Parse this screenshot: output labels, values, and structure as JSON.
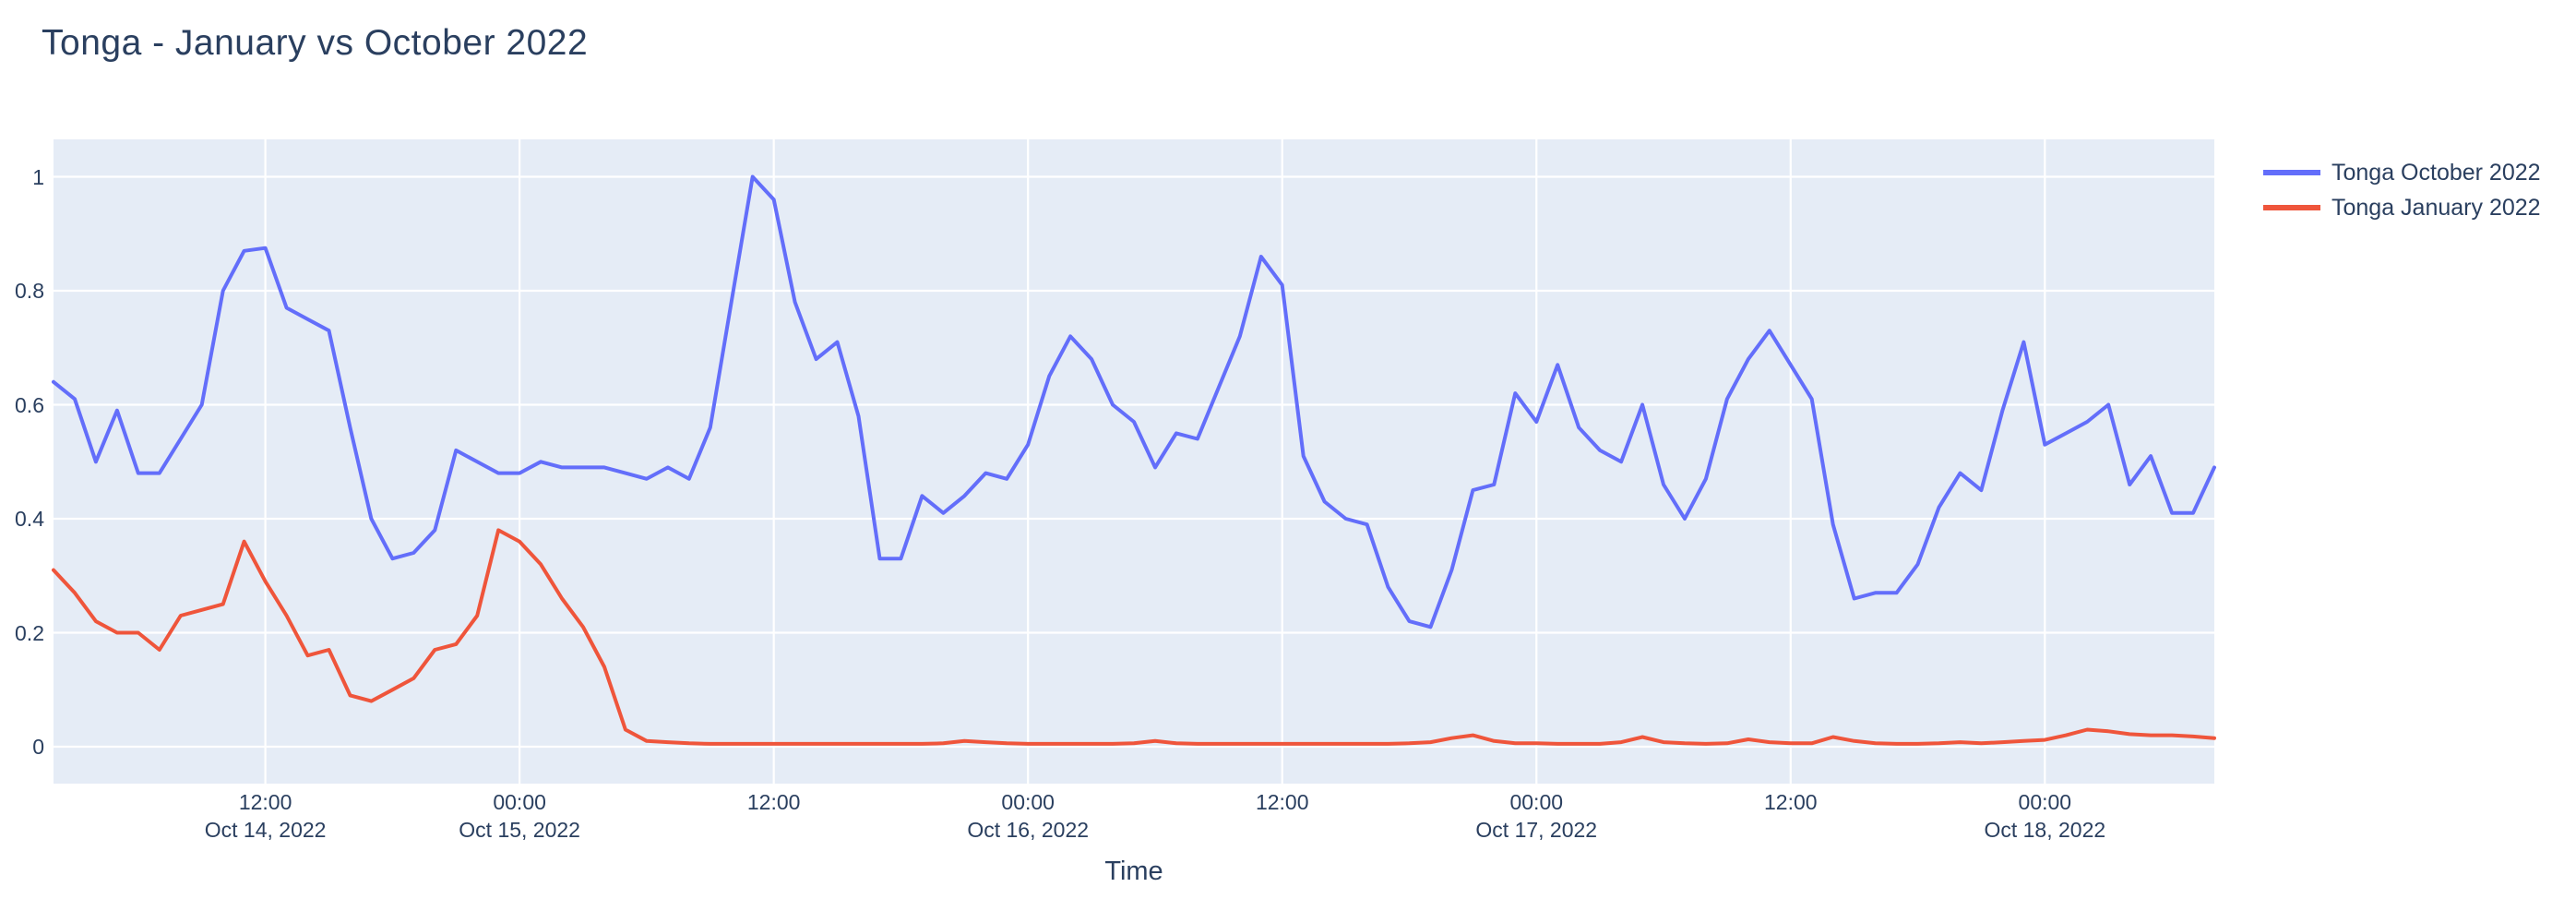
{
  "title": "Tonga - January vs October 2022",
  "axes": {
    "x_title": "Time",
    "y_ticks": [
      0,
      0.2,
      0.4,
      0.6,
      0.8,
      1
    ],
    "x_ticks": [
      {
        "h": 12,
        "time": "12:00",
        "date": "Oct 14, 2022"
      },
      {
        "h": 24,
        "time": "00:00",
        "date": "Oct 15, 2022"
      },
      {
        "h": 36,
        "time": "12:00",
        "date": ""
      },
      {
        "h": 48,
        "time": "00:00",
        "date": "Oct 16, 2022"
      },
      {
        "h": 60,
        "time": "12:00",
        "date": ""
      },
      {
        "h": 72,
        "time": "00:00",
        "date": "Oct 17, 2022"
      },
      {
        "h": 84,
        "time": "12:00",
        "date": ""
      },
      {
        "h": 96,
        "time": "00:00",
        "date": "Oct 18, 2022"
      }
    ]
  },
  "legend": {
    "entries": [
      {
        "label": "Tonga October 2022",
        "color": "#636efa"
      },
      {
        "label": "Tonga January 2022",
        "color": "#ef553b"
      }
    ]
  },
  "colors": {
    "plot_background": "#e5ecf6",
    "grid": "#ffffff",
    "text": "#2a3f5f",
    "series_october": "#636efa",
    "series_january": "#ef553b"
  },
  "chart_data": {
    "type": "line",
    "title": "Tonga - January vs October 2022",
    "xlabel": "Time",
    "ylabel": "",
    "grid": true,
    "legend_position": "outside-right-top",
    "x_unit": "hours since Oct 14, 2022 00:00",
    "x_start_hour": 2,
    "x_end_hour": 104,
    "x_step_hours": 1,
    "ylim": [
      -0.065,
      1.065
    ],
    "series": [
      {
        "name": "Tonga October 2022",
        "color": "#636efa",
        "values": [
          0.64,
          0.61,
          0.5,
          0.59,
          0.48,
          0.48,
          0.54,
          0.6,
          0.8,
          0.87,
          0.875,
          0.77,
          0.75,
          0.73,
          0.56,
          0.4,
          0.33,
          0.34,
          0.38,
          0.52,
          0.5,
          0.48,
          0.48,
          0.5,
          0.49,
          0.49,
          0.49,
          0.48,
          0.47,
          0.49,
          0.47,
          0.56,
          0.78,
          1.0,
          0.96,
          0.78,
          0.68,
          0.71,
          0.58,
          0.33,
          0.33,
          0.44,
          0.41,
          0.44,
          0.48,
          0.47,
          0.53,
          0.65,
          0.72,
          0.68,
          0.6,
          0.57,
          0.49,
          0.55,
          0.54,
          0.63,
          0.72,
          0.86,
          0.81,
          0.51,
          0.43,
          0.4,
          0.39,
          0.28,
          0.22,
          0.21,
          0.31,
          0.45,
          0.46,
          0.62,
          0.57,
          0.67,
          0.56,
          0.52,
          0.5,
          0.6,
          0.46,
          0.4,
          0.47,
          0.61,
          0.68,
          0.73,
          0.67,
          0.61,
          0.39,
          0.26,
          0.27,
          0.27,
          0.32,
          0.42,
          0.48,
          0.45,
          0.59,
          0.71,
          0.53,
          0.55,
          0.57,
          0.6,
          0.46,
          0.51,
          0.41,
          0.41,
          0.49
        ]
      },
      {
        "name": "Tonga January 2022",
        "color": "#ef553b",
        "values": [
          0.31,
          0.27,
          0.22,
          0.2,
          0.2,
          0.17,
          0.23,
          0.24,
          0.25,
          0.36,
          0.29,
          0.23,
          0.16,
          0.17,
          0.09,
          0.08,
          0.1,
          0.12,
          0.17,
          0.18,
          0.23,
          0.38,
          0.36,
          0.32,
          0.26,
          0.21,
          0.14,
          0.03,
          0.01,
          0.008,
          0.006,
          0.005,
          0.005,
          0.005,
          0.005,
          0.005,
          0.005,
          0.005,
          0.005,
          0.005,
          0.005,
          0.005,
          0.006,
          0.01,
          0.008,
          0.006,
          0.005,
          0.005,
          0.005,
          0.005,
          0.005,
          0.006,
          0.01,
          0.006,
          0.005,
          0.005,
          0.005,
          0.005,
          0.005,
          0.005,
          0.005,
          0.005,
          0.005,
          0.005,
          0.006,
          0.008,
          0.015,
          0.02,
          0.01,
          0.006,
          0.006,
          0.005,
          0.005,
          0.005,
          0.008,
          0.017,
          0.008,
          0.006,
          0.005,
          0.006,
          0.013,
          0.008,
          0.006,
          0.006,
          0.017,
          0.01,
          0.006,
          0.005,
          0.005,
          0.006,
          0.008,
          0.006,
          0.008,
          0.01,
          0.012,
          0.02,
          0.03,
          0.027,
          0.022,
          0.02,
          0.02,
          0.018,
          0.015
        ]
      }
    ]
  }
}
